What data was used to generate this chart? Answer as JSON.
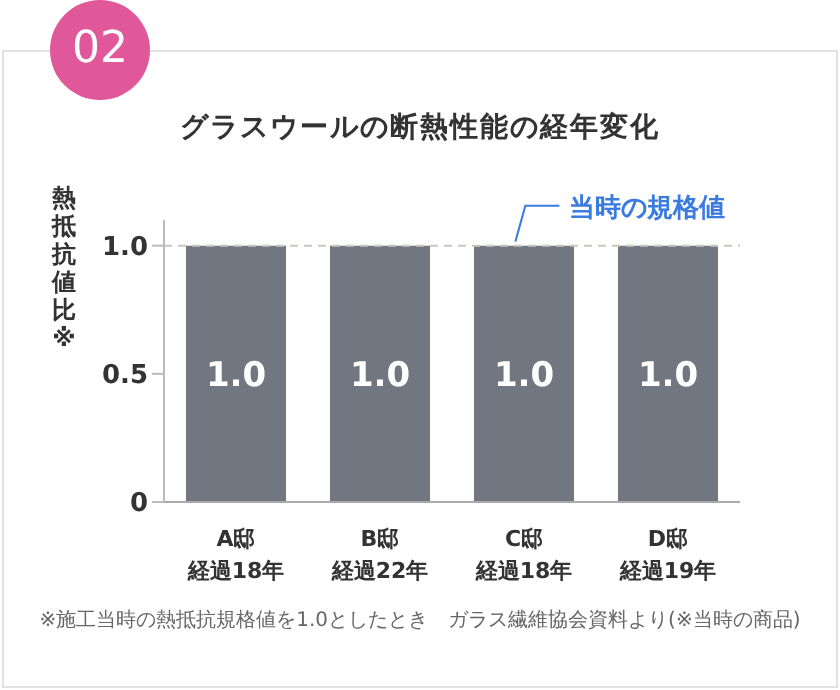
{
  "chart_data": {
    "type": "bar",
    "title": "グラスウールの断熱性能の経年変化",
    "ylabel": "熱抵抗値比※",
    "categories": [
      "A邸経過18年",
      "B邸経過22年",
      "C邸経過18年",
      "D邸経過19年"
    ],
    "values": [
      1.0,
      1.0,
      1.0,
      1.0
    ],
    "color": "#717681",
    "value_labels": [
      "1.0",
      "1.0",
      "1.0",
      "1.0"
    ],
    "ylim": [
      0,
      1.1
    ],
    "yticks": [
      0,
      0.5,
      {
        "value": 1.0,
        "label": "1.0"
      }
    ],
    "ref_lines": [
      {
        "axis": "y",
        "value": 1.0,
        "label": "当時の規格値",
        "color": "#c8c8b8",
        "line_style": "dashed"
      }
    ],
    "annotations": [
      "02",
      "※施工当時の熱抵抗規格値を1.0としたとき　ガラス繊維協会資料より(※当時の商品)"
    ],
    "grid": false,
    "legend": false
  }
}
